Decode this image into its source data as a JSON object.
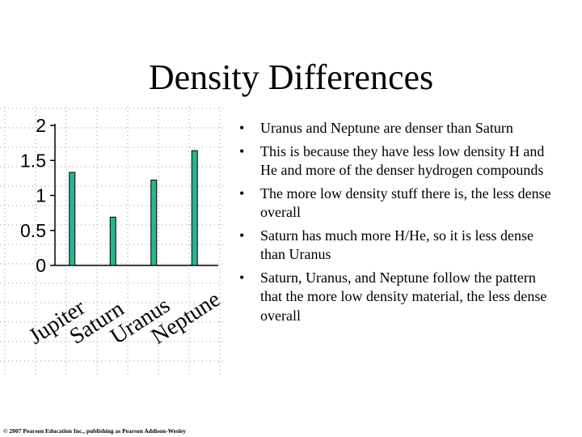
{
  "slide": {
    "title": "Density Differences",
    "copyright": "© 2007 Pearson Education Inc., publishing as Pearson Addison-Wesley"
  },
  "bullets": [
    "Uranus and Neptune are denser than Saturn",
    "This is because they have less low density H and He and more of the denser hydrogen compounds",
    "The more low density stuff there is, the less dense overall",
    "Saturn has much more H/He, so it is less dense than Uranus",
    "Saturn, Uranus, and Neptune follow the pattern that the more low density material, the less dense overall"
  ],
  "bullet_glyph": "•",
  "chart_data": {
    "type": "bar",
    "categories": [
      "Jupiter",
      "Saturn",
      "Uranus",
      "Neptune"
    ],
    "values": [
      1.33,
      0.69,
      1.22,
      1.64
    ],
    "title": "",
    "xlabel": "",
    "ylabel": "",
    "ylim": [
      0,
      2
    ],
    "yticks": [
      "0",
      "0.5",
      "1",
      "1.5",
      "2"
    ],
    "grid": true,
    "bar_color": "#2bb392",
    "bar_edge_color": "#000000"
  }
}
